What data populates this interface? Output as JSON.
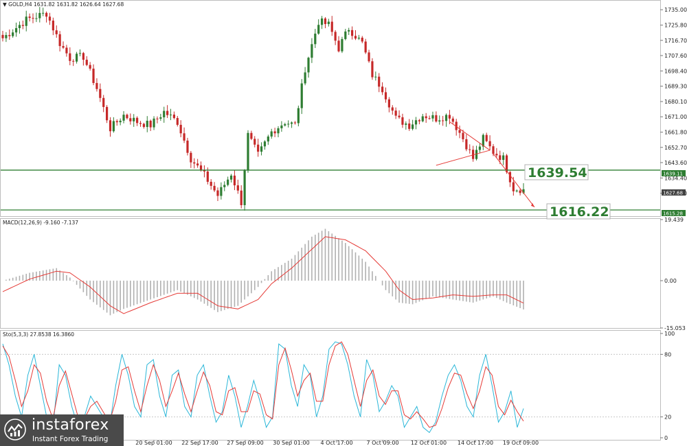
{
  "header": {
    "title": "GOLD,H4",
    "ohlc": "1631.82 1631.82 1626.64 1627.68"
  },
  "levels": {
    "upper": {
      "label": "1639.54",
      "tag": "1639.11",
      "value": 1639.11
    },
    "lower": {
      "label": "1616.22",
      "tag": "1615.28",
      "value": 1615.28
    },
    "current": {
      "tag": "1627.68",
      "value": 1627.68
    }
  },
  "chart_data": [
    {
      "type": "candlestick",
      "title": "GOLD,H4",
      "y_ticks": [
        "1735.00",
        "1725.80",
        "1716.70",
        "1707.60",
        "1698.40",
        "1689.30",
        "1680.10",
        "1671.00",
        "1661.80",
        "1652.70",
        "1643.60",
        "1634.40",
        "1625.30"
      ],
      "y_range": [
        1612,
        1740
      ],
      "x_labels": [
        "20 Sep 01:00",
        "22 Sep 17:00",
        "27 Sep 09:00",
        "30 Sep 01:00",
        "4 Oct 17:00",
        "7 Oct 09:00",
        "12 Oct 01:00",
        "14 Oct 17:00",
        "19 Oct 09:00"
      ],
      "key_points": [
        {
          "t": 0,
          "price": 1718
        },
        {
          "t": 7,
          "price": 1729
        },
        {
          "t": 13,
          "price": 1733
        },
        {
          "t": 17,
          "price": 1715
        },
        {
          "t": 20,
          "price": 1706
        },
        {
          "t": 24,
          "price": 1707
        },
        {
          "t": 28,
          "price": 1688
        },
        {
          "t": 32,
          "price": 1664
        },
        {
          "t": 36,
          "price": 1672
        },
        {
          "t": 40,
          "price": 1668
        },
        {
          "t": 44,
          "price": 1666
        },
        {
          "t": 48,
          "price": 1674
        },
        {
          "t": 52,
          "price": 1668
        },
        {
          "t": 56,
          "price": 1646
        },
        {
          "t": 60,
          "price": 1636
        },
        {
          "t": 64,
          "price": 1624
        },
        {
          "t": 68,
          "price": 1637
        },
        {
          "t": 71,
          "price": 1620
        },
        {
          "t": 73,
          "price": 1660
        },
        {
          "t": 76,
          "price": 1648
        },
        {
          "t": 80,
          "price": 1662
        },
        {
          "t": 84,
          "price": 1668
        },
        {
          "t": 87,
          "price": 1666
        },
        {
          "t": 90,
          "price": 1700
        },
        {
          "t": 94,
          "price": 1728
        },
        {
          "t": 97,
          "price": 1726
        },
        {
          "t": 100,
          "price": 1712
        },
        {
          "t": 103,
          "price": 1724
        },
        {
          "t": 107,
          "price": 1715
        },
        {
          "t": 110,
          "price": 1696
        },
        {
          "t": 113,
          "price": 1688
        },
        {
          "t": 117,
          "price": 1670
        },
        {
          "t": 121,
          "price": 1666
        },
        {
          "t": 125,
          "price": 1672
        },
        {
          "t": 129,
          "price": 1670
        },
        {
          "t": 133,
          "price": 1672
        },
        {
          "t": 137,
          "price": 1658
        },
        {
          "t": 140,
          "price": 1646
        },
        {
          "t": 143,
          "price": 1658
        },
        {
          "t": 146,
          "price": 1650
        },
        {
          "t": 149,
          "price": 1646
        },
        {
          "t": 152,
          "price": 1628
        },
        {
          "t": 155,
          "price": 1627.68
        }
      ]
    },
    {
      "type": "bar",
      "title": "MACD(12,26,9) -9.160 -7.137",
      "y_ticks": [
        "19.439",
        "0.00",
        "-15.053"
      ],
      "y_range": [
        -15.053,
        19.439
      ],
      "key_points": [
        {
          "t": 0,
          "macd": 0,
          "signal": -3.5
        },
        {
          "t": 8,
          "macd": 2.5,
          "signal": 0.5
        },
        {
          "t": 16,
          "macd": 4,
          "signal": 3
        },
        {
          "t": 20,
          "macd": 1,
          "signal": 2.5
        },
        {
          "t": 26,
          "macd": -6,
          "signal": -2
        },
        {
          "t": 32,
          "macd": -11,
          "signal": -8
        },
        {
          "t": 36,
          "macd": -9,
          "signal": -10.5
        },
        {
          "t": 44,
          "macd": -6,
          "signal": -7
        },
        {
          "t": 52,
          "macd": -3,
          "signal": -4
        },
        {
          "t": 58,
          "macd": -6,
          "signal": -4
        },
        {
          "t": 64,
          "macd": -10,
          "signal": -8
        },
        {
          "t": 70,
          "macd": -8,
          "signal": -9
        },
        {
          "t": 76,
          "macd": -2,
          "signal": -6
        },
        {
          "t": 80,
          "macd": 3,
          "signal": -1
        },
        {
          "t": 86,
          "macd": 7,
          "signal": 4
        },
        {
          "t": 92,
          "macd": 14,
          "signal": 10
        },
        {
          "t": 96,
          "macd": 16.5,
          "signal": 14
        },
        {
          "t": 102,
          "macd": 12,
          "signal": 13
        },
        {
          "t": 108,
          "macd": 6,
          "signal": 9.5
        },
        {
          "t": 114,
          "macd": -3,
          "signal": 3
        },
        {
          "t": 118,
          "macd": -7,
          "signal": -3
        },
        {
          "t": 122,
          "macd": -7.5,
          "signal": -6
        },
        {
          "t": 128,
          "macd": -5,
          "signal": -5.5
        },
        {
          "t": 134,
          "macd": -6,
          "signal": -4.5
        },
        {
          "t": 140,
          "macd": -7,
          "signal": -5
        },
        {
          "t": 146,
          "macd": -5,
          "signal": -4.5
        },
        {
          "t": 150,
          "macd": -7,
          "signal": -4.5
        },
        {
          "t": 155,
          "macd": -9.16,
          "signal": -7.137
        }
      ]
    },
    {
      "type": "line",
      "title": "Sto(5,3,3) 27.8538 16.3860",
      "y_ticks": [
        "100",
        "80",
        "20",
        "0"
      ],
      "y_range": [
        0,
        100
      ],
      "series": [
        {
          "name": "",
          "color": "#29b6d8",
          "values": [
            90,
            70,
            40,
            20,
            60,
            80,
            50,
            20,
            10,
            70,
            60,
            30,
            10,
            20,
            40,
            30,
            20,
            10,
            50,
            80,
            60,
            30,
            20,
            70,
            75,
            40,
            20,
            60,
            65,
            30,
            20,
            60,
            70,
            40,
            15,
            25,
            60,
            40,
            10,
            30,
            55,
            35,
            10,
            20,
            90,
            85,
            50,
            30,
            70,
            60,
            20,
            40,
            85,
            92,
            90,
            70,
            40,
            20,
            75,
            60,
            25,
            35,
            50,
            40,
            10,
            20,
            30,
            10,
            5,
            15,
            40,
            60,
            70,
            55,
            30,
            20,
            60,
            80,
            50,
            15,
            25,
            45,
            10,
            28
          ]
        },
        {
          "name": "",
          "color": "#e53935",
          "values": [
            88,
            78,
            55,
            30,
            45,
            70,
            62,
            35,
            18,
            50,
            64,
            42,
            20,
            18,
            30,
            35,
            25,
            15,
            35,
            65,
            68,
            45,
            25,
            50,
            70,
            55,
            30,
            45,
            62,
            42,
            25,
            45,
            63,
            50,
            25,
            22,
            45,
            48,
            25,
            25,
            45,
            42,
            22,
            18,
            70,
            86,
            65,
            40,
            55,
            62,
            35,
            35,
            70,
            88,
            92,
            80,
            55,
            30,
            55,
            65,
            40,
            32,
            45,
            45,
            22,
            18,
            25,
            18,
            10,
            12,
            28,
            48,
            62,
            60,
            42,
            28,
            45,
            68,
            60,
            30,
            22,
            36,
            25,
            16
          ]
        }
      ]
    }
  ],
  "branding": {
    "name": "instaforex",
    "tagline": "Instant Forex Trading"
  },
  "colors": {
    "bull": "#2e7d32",
    "bear": "#c62828",
    "level": "#2e7d32",
    "macd_hist": "#b0b0b0",
    "signal": "#e53935",
    "wedge": "#e53935"
  }
}
